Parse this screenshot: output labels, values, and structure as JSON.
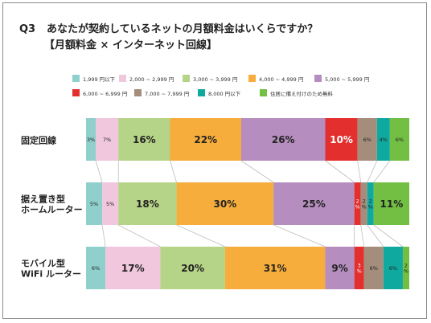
{
  "title": {
    "question_no": "Q3",
    "question": "あなたが契約しているネットの月額料金はいくらですか？",
    "subtitle": "【月額料金 × インターネット回線】"
  },
  "chart_data": {
    "type": "bar",
    "orientation": "horizontal",
    "stacked": "percent",
    "legend_placement": "top",
    "grid": false,
    "categories": [
      "固定回線",
      "据え置き型\nホームルーター",
      "モバイル型\nWiFi ルーター"
    ],
    "series": [
      {
        "name": "1,999 円以下",
        "color": "#8fcfcc",
        "values": [
          3,
          5,
          6
        ]
      },
      {
        "name": "2,000 ~ 2,999 円",
        "color": "#f0c7dd",
        "values": [
          7,
          5,
          17
        ]
      },
      {
        "name": "3,000 ~ 3,999 円",
        "color": "#b6d487",
        "values": [
          16,
          18,
          20
        ]
      },
      {
        "name": "4,000 ~ 4,999 円",
        "color": "#f6ad3b",
        "values": [
          22,
          30,
          31
        ]
      },
      {
        "name": "5,000 ~ 5,999 円",
        "color": "#b58dbe",
        "values": [
          26,
          25,
          9
        ]
      },
      {
        "name": "6,000 ~ 6,999 円",
        "color": "#e3302f",
        "values": [
          10,
          2,
          3
        ]
      },
      {
        "name": "7,000 ~ 7,999 円",
        "color": "#a48d7b",
        "values": [
          6,
          2,
          6
        ]
      },
      {
        "name": "8,000 円以下",
        "color": "#10a9a0",
        "values": [
          4,
          2,
          6
        ]
      },
      {
        "name": "住居に備え付けのため無料",
        "color": "#72bf44",
        "values": [
          6,
          11,
          2
        ]
      }
    ],
    "data_labels": [
      [
        "3%",
        "7%",
        "16%",
        "22%",
        "26%",
        "10%",
        "6%",
        "4%",
        "6%"
      ],
      [
        "5%",
        "5%",
        "18%",
        "30%",
        "25%",
        "2\n%",
        "2\n%",
        "2\n%",
        "11%"
      ],
      [
        "6%",
        "17%",
        "20%",
        "31%",
        "9%",
        "3\n%",
        "6%",
        "6%",
        "2\n%"
      ]
    ]
  }
}
